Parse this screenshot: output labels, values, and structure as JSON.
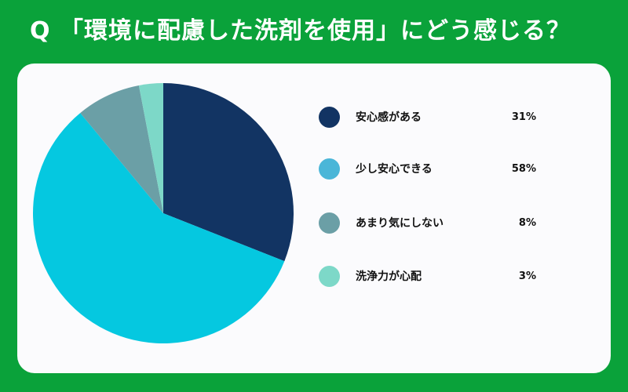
{
  "title": "Q 「環境に配慮した洗剤を使用」にどう感じる？",
  "chart_data": {
    "type": "pie",
    "categories": [
      "安心感がある",
      "少し安心できる",
      "あまり気にしない",
      "洗浄力が心配"
    ],
    "values": [
      31,
      58,
      8,
      3
    ],
    "value_labels": [
      "31%",
      "58%",
      "8%",
      "3%"
    ],
    "unit": "%",
    "colors": [
      "#123463",
      "#05c8e0",
      "#6b9fa6",
      "#7dd8c8"
    ],
    "legend_colors": [
      "#123463",
      "#4ab6d8",
      "#6b9fa6",
      "#7dd8c8"
    ],
    "legend_placement": "right",
    "start": "top, clockwise"
  }
}
